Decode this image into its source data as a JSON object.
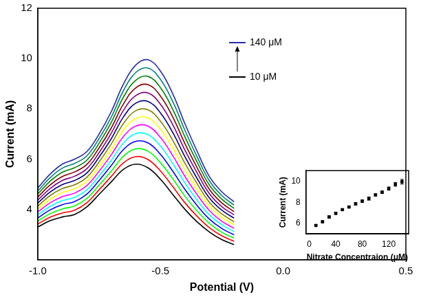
{
  "chart_data": [
    {
      "type": "line",
      "x_label": "Potential (V)",
      "y_label": "Current (mA)",
      "x": [
        -1.0,
        -0.95,
        -0.9,
        -0.85,
        -0.8,
        -0.75,
        -0.7,
        -0.65,
        -0.6,
        -0.55,
        -0.5,
        -0.45,
        -0.4,
        -0.35,
        -0.3,
        -0.25,
        -0.2
      ],
      "xlim": [
        -1.0,
        0.5
      ],
      "xticks": [
        {
          "value": -1.0,
          "label": "-1.0"
        },
        {
          "value": -0.5,
          "label": "-0.5"
        },
        {
          "value": 0,
          "label": "0.0"
        },
        {
          "value": 0.5,
          "label": "0.5"
        }
      ],
      "ylim": [
        2,
        12
      ],
      "yticks": [
        4,
        6,
        8,
        10,
        12
      ],
      "grid": false,
      "line_style": "solid",
      "series": [
        {
          "name": "10 μM",
          "color": "#000000",
          "values": [
            3.3,
            3.55,
            3.7,
            3.8,
            4.1,
            4.6,
            5.1,
            5.6,
            5.8,
            5.65,
            5.2,
            4.6,
            4.0,
            3.5,
            3.1,
            2.8,
            2.6
          ]
        },
        {
          "color": "#ff0000",
          "values": [
            3.42,
            3.69,
            3.86,
            3.97,
            4.27,
            4.78,
            5.32,
            5.86,
            6.1,
            5.98,
            5.53,
            4.91,
            4.26,
            3.72,
            3.27,
            2.95,
            2.73
          ]
        },
        {
          "color": "#00ff00",
          "values": [
            3.54,
            3.83,
            4.02,
            4.14,
            4.44,
            4.97,
            5.53,
            6.12,
            6.41,
            6.31,
            5.86,
            5.22,
            4.52,
            3.93,
            3.44,
            3.09,
            2.86
          ]
        },
        {
          "color": "#0000ff",
          "values": [
            3.66,
            3.98,
            4.19,
            4.31,
            4.61,
            5.15,
            5.75,
            6.39,
            6.71,
            6.64,
            6.19,
            5.52,
            4.79,
            4.15,
            3.61,
            3.24,
            2.99
          ]
        },
        {
          "color": "#00ffff",
          "values": [
            3.78,
            4.12,
            4.35,
            4.48,
            4.78,
            5.34,
            5.96,
            6.65,
            7.02,
            6.97,
            6.52,
            5.83,
            5.05,
            4.36,
            3.78,
            3.39,
            3.12
          ]
        },
        {
          "color": "#ff00ff",
          "values": [
            3.9,
            4.26,
            4.51,
            4.65,
            4.95,
            5.52,
            6.18,
            6.91,
            7.32,
            7.31,
            6.86,
            6.14,
            5.31,
            4.58,
            3.95,
            3.53,
            3.25
          ]
        },
        {
          "color": "#ffff00",
          "values": [
            4.02,
            4.4,
            4.67,
            4.82,
            5.12,
            5.71,
            6.39,
            7.17,
            7.62,
            7.64,
            7.19,
            6.45,
            5.57,
            4.79,
            4.12,
            3.68,
            3.39
          ]
        },
        {
          "color": "#808000",
          "values": [
            4.13,
            4.55,
            4.83,
            4.98,
            5.28,
            5.89,
            6.61,
            7.43,
            7.93,
            7.96,
            7.51,
            6.75,
            5.83,
            5.01,
            4.28,
            3.82,
            3.51
          ]
        },
        {
          "color": "#000080",
          "values": [
            4.25,
            4.69,
            4.99,
            5.15,
            5.45,
            6.08,
            6.82,
            7.69,
            8.23,
            8.29,
            7.84,
            7.06,
            6.09,
            5.22,
            4.45,
            3.97,
            3.65
          ]
        },
        {
          "color": "#800080",
          "values": [
            4.37,
            4.83,
            5.15,
            5.32,
            5.62,
            6.26,
            7.04,
            7.95,
            8.53,
            8.63,
            8.18,
            7.37,
            6.35,
            5.44,
            4.62,
            4.11,
            3.78
          ]
        },
        {
          "color": "#800000",
          "values": [
            4.49,
            4.97,
            5.31,
            5.49,
            5.79,
            6.45,
            7.25,
            8.21,
            8.84,
            8.96,
            8.51,
            7.68,
            6.61,
            5.65,
            4.79,
            4.26,
            3.91
          ]
        },
        {
          "color": "#008000",
          "values": [
            4.61,
            5.12,
            5.48,
            5.66,
            5.96,
            6.63,
            7.47,
            8.48,
            9.14,
            9.29,
            8.84,
            7.98,
            6.88,
            5.87,
            4.96,
            4.41,
            4.04
          ]
        },
        {
          "color": "#008080",
          "values": [
            4.73,
            5.26,
            5.64,
            5.83,
            6.13,
            6.82,
            7.68,
            8.74,
            9.45,
            9.62,
            9.17,
            8.29,
            7.14,
            6.08,
            5.13,
            4.55,
            4.17
          ]
        },
        {
          "name": "140 μM",
          "color": "#2a2aa8",
          "values": [
            4.85,
            5.4,
            5.8,
            6.0,
            6.3,
            7.0,
            7.9,
            9.0,
            9.75,
            9.95,
            9.5,
            8.6,
            7.4,
            6.3,
            5.3,
            4.7,
            4.3
          ]
        }
      ]
    },
    {
      "type": "scatter",
      "x_label": "Nitrate Concentraion (μM)",
      "y_label": "Current (mA)",
      "x": [
        10,
        20,
        30,
        40,
        50,
        60,
        70,
        80,
        90,
        100,
        110,
        120,
        130,
        140
      ],
      "values": [
        5.8,
        6.15,
        6.6,
        6.95,
        7.3,
        7.55,
        7.85,
        8.1,
        8.35,
        8.7,
        8.95,
        9.3,
        9.7,
        9.95
      ],
      "errors": [
        0.08,
        0.1,
        0.12,
        0.1,
        0.08,
        0.1,
        0.12,
        0.12,
        0.15,
        0.1,
        0.12,
        0.15,
        0.18,
        0.22
      ],
      "color": "#000000",
      "marker": "square",
      "xlim": [
        -5,
        150
      ],
      "xticks": [
        0,
        40,
        80,
        120
      ],
      "ylim": [
        5,
        11
      ],
      "yticks": [
        6,
        8,
        10
      ],
      "grid": false
    }
  ]
}
